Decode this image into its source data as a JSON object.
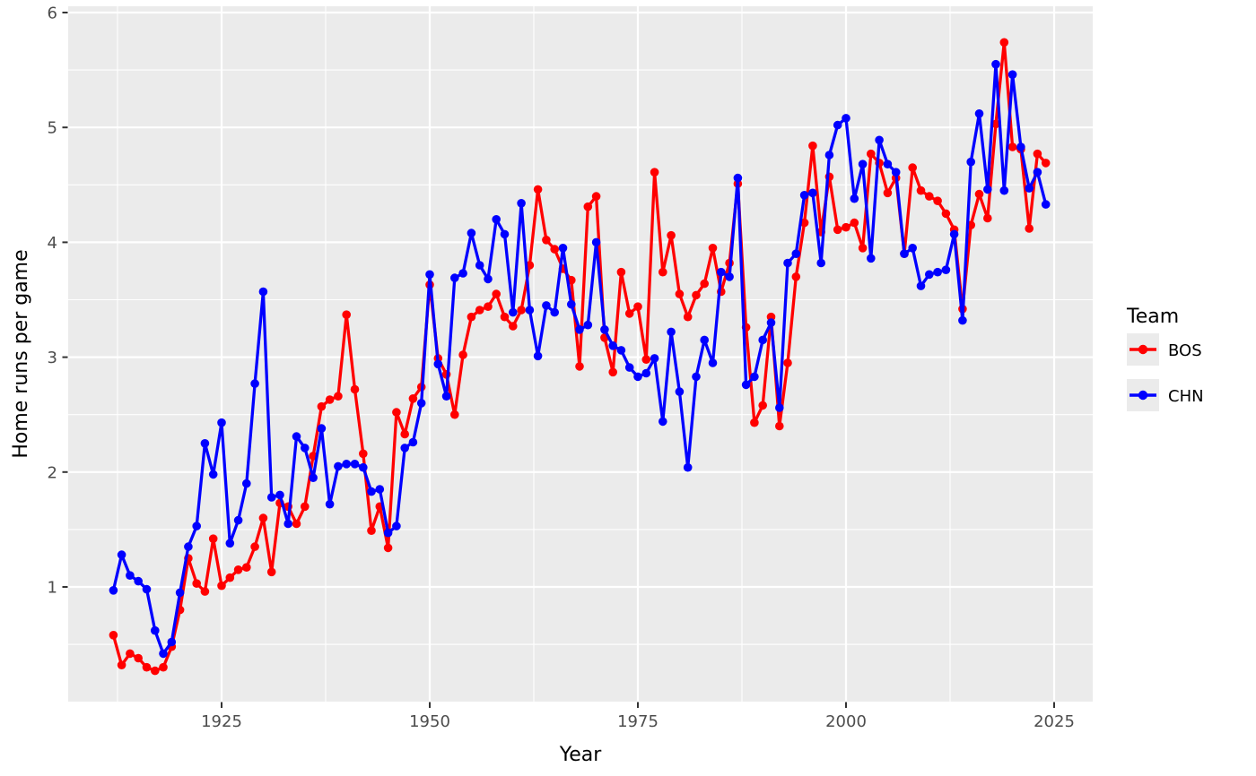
{
  "chart_data": {
    "type": "line",
    "title": "",
    "legend_title": "Team",
    "xlabel": "Year",
    "ylabel": "Home runs per game",
    "legend_position": "right",
    "grid": true,
    "panel_background": "#EBEBEB",
    "grid_color": "#FFFFFF",
    "tick_color": "#333333",
    "tick_label_color": "#4D4D4D",
    "axis_title_color": "#000000",
    "x_ticks": [
      1925,
      1950,
      1975,
      2000,
      2025
    ],
    "y_ticks": [
      1,
      2,
      3,
      4,
      5,
      6
    ],
    "x_minor": [
      1912.5,
      1937.5,
      1962.5,
      1987.5,
      2012.5
    ],
    "y_minor": [
      0.5,
      1.5,
      2.5,
      3.5,
      4.5,
      5.5
    ],
    "xlim": [
      1906.4,
      2029.6
    ],
    "ylim": [
      -0.01,
      6.06
    ],
    "x": [
      1912,
      1913,
      1914,
      1915,
      1916,
      1917,
      1918,
      1919,
      1920,
      1921,
      1922,
      1923,
      1924,
      1925,
      1926,
      1927,
      1928,
      1929,
      1930,
      1931,
      1932,
      1933,
      1934,
      1935,
      1936,
      1937,
      1938,
      1939,
      1940,
      1941,
      1942,
      1943,
      1944,
      1945,
      1946,
      1947,
      1948,
      1949,
      1950,
      1951,
      1952,
      1953,
      1954,
      1955,
      1956,
      1957,
      1958,
      1959,
      1960,
      1961,
      1962,
      1963,
      1964,
      1965,
      1966,
      1967,
      1968,
      1969,
      1970,
      1971,
      1972,
      1973,
      1974,
      1975,
      1976,
      1977,
      1978,
      1979,
      1980,
      1981,
      1982,
      1983,
      1984,
      1985,
      1986,
      1987,
      1988,
      1989,
      1990,
      1991,
      1992,
      1993,
      1994,
      1995,
      1996,
      1997,
      1998,
      1999,
      2000,
      2001,
      2002,
      2003,
      2004,
      2005,
      2006,
      2007,
      2008,
      2009,
      2010,
      2011,
      2012,
      2013,
      2014,
      2015,
      2016,
      2017,
      2018,
      2019,
      2020,
      2021,
      2022,
      2023,
      2024
    ],
    "series": [
      {
        "name": "BOS",
        "color": "#FF0000",
        "values": [
          0.58,
          0.32,
          0.42,
          0.38,
          0.3,
          0.27,
          0.3,
          0.48,
          0.8,
          1.25,
          1.03,
          0.96,
          1.42,
          1.01,
          1.08,
          1.15,
          1.17,
          1.35,
          1.6,
          1.13,
          1.73,
          1.7,
          1.55,
          1.7,
          2.14,
          2.57,
          2.63,
          2.66,
          3.37,
          2.72,
          2.16,
          1.49,
          1.7,
          1.34,
          2.52,
          2.33,
          2.64,
          2.74,
          3.63,
          2.99,
          2.85,
          2.5,
          3.02,
          3.35,
          3.41,
          3.44,
          3.55,
          3.35,
          3.27,
          3.41,
          3.8,
          4.46,
          4.02,
          3.94,
          3.77,
          3.67,
          2.92,
          4.31,
          4.4,
          3.17,
          2.87,
          3.74,
          3.38,
          3.44,
          2.98,
          4.61,
          3.74,
          4.06,
          3.55,
          3.35,
          3.54,
          3.64,
          3.95,
          3.57,
          3.82,
          4.51,
          3.26,
          2.43,
          2.58,
          3.35,
          2.4,
          2.95,
          3.7,
          4.17,
          4.84,
          4.09,
          4.57,
          4.11,
          4.13,
          4.17,
          3.95,
          4.77,
          4.69,
          4.43,
          4.56,
          3.9,
          4.65,
          4.45,
          4.4,
          4.36,
          4.25,
          4.11,
          3.42,
          4.15,
          4.42,
          4.21,
          5.03,
          5.74,
          4.83,
          4.81,
          4.12,
          4.77,
          4.69
        ]
      },
      {
        "name": "CHN",
        "color": "#0000FF",
        "values": [
          0.97,
          1.28,
          1.1,
          1.05,
          0.98,
          0.62,
          0.42,
          0.52,
          0.95,
          1.35,
          1.53,
          2.25,
          1.98,
          2.43,
          1.38,
          1.58,
          1.9,
          2.77,
          3.57,
          1.78,
          1.8,
          1.55,
          2.31,
          2.21,
          1.95,
          2.38,
          1.72,
          2.05,
          2.07,
          2.07,
          2.04,
          1.83,
          1.85,
          1.47,
          1.53,
          2.21,
          2.26,
          2.6,
          3.72,
          2.94,
          2.66,
          3.69,
          3.73,
          4.08,
          3.8,
          3.68,
          4.2,
          4.07,
          3.39,
          4.34,
          3.41,
          3.01,
          3.45,
          3.39,
          3.95,
          3.46,
          3.24,
          3.28,
          4.0,
          3.24,
          3.1,
          3.06,
          2.91,
          2.83,
          2.86,
          2.99,
          2.44,
          3.22,
          2.7,
          2.04,
          2.83,
          3.15,
          2.95,
          3.74,
          3.7,
          4.56,
          2.76,
          2.83,
          3.15,
          3.3,
          2.56,
          3.82,
          3.9,
          4.41,
          4.43,
          3.82,
          4.76,
          5.02,
          5.08,
          4.38,
          4.68,
          3.86,
          4.89,
          4.68,
          4.61,
          3.9,
          3.95,
          3.62,
          3.72,
          3.74,
          3.76,
          4.07,
          3.32,
          4.7,
          5.12,
          4.46,
          5.55,
          4.45,
          5.46,
          4.83,
          4.47,
          4.61,
          4.33
        ]
      }
    ]
  }
}
